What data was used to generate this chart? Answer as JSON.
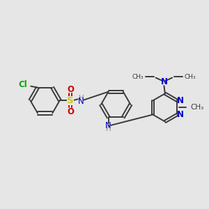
{
  "bg_color": "#e6e6e6",
  "bond_color": "#3a3a3a",
  "N_color": "#0000cc",
  "O_color": "#cc0000",
  "S_color": "#cccc00",
  "Cl_color": "#00aa00",
  "H_color": "#888888",
  "lw": 1.4,
  "fs": 8.5,
  "ring_r": 0.72,
  "xlim": [
    0,
    10
  ],
  "ylim": [
    0,
    10
  ]
}
